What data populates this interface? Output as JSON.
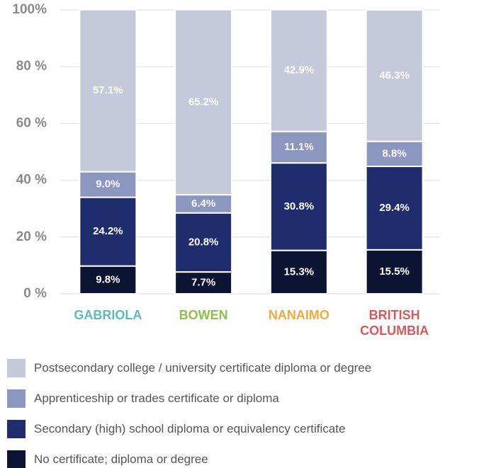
{
  "chart_data": {
    "type": "stacked_bar",
    "categories": [
      "GABRIOLA",
      "BOWEN",
      "NANAIMO",
      "BRITISH COLUMBIA"
    ],
    "category_colors": [
      "#5bbcb5",
      "#8dc04a",
      "#f2a93b",
      "#d9575a"
    ],
    "series": [
      {
        "name": "No certificate; diploma or degree",
        "color": "#0d1433",
        "values": [
          9.8,
          7.7,
          15.3,
          15.5
        ],
        "value_labels": [
          "9.8%",
          "7.7%",
          "15.3%",
          "15.5%"
        ]
      },
      {
        "name": "Secondary (high) school diploma or equivalency certificate",
        "color": "#1f2d6e",
        "values": [
          24.2,
          20.8,
          30.8,
          29.4
        ],
        "value_labels": [
          "24.2%",
          "20.8%",
          "30.8%",
          "29.4%"
        ]
      },
      {
        "name": "Apprenticeship or trades certificate or diploma",
        "color": "#8b97bf",
        "values": [
          9.0,
          6.4,
          11.1,
          8.8
        ],
        "value_labels": [
          "9.0%",
          "6.4%",
          "11.1%",
          "8.8%"
        ]
      },
      {
        "name": "Postsecondary college / university certificate diploma or degree",
        "color": "#c5c9db",
        "values": [
          57.1,
          65.2,
          42.9,
          46.3
        ],
        "value_labels": [
          "57.1%",
          "65.2%",
          "42.9%",
          "46.3%"
        ]
      }
    ],
    "ylim": [
      0,
      100
    ],
    "yticks": [
      {
        "value": 0,
        "label": "0 %"
      },
      {
        "value": 20,
        "label": "20 %"
      },
      {
        "value": 40,
        "label": "40 %"
      },
      {
        "value": 60,
        "label": "60 %"
      },
      {
        "value": 80,
        "label": "80 %"
      },
      {
        "value": 100,
        "label": "100%"
      }
    ],
    "grid": true
  }
}
